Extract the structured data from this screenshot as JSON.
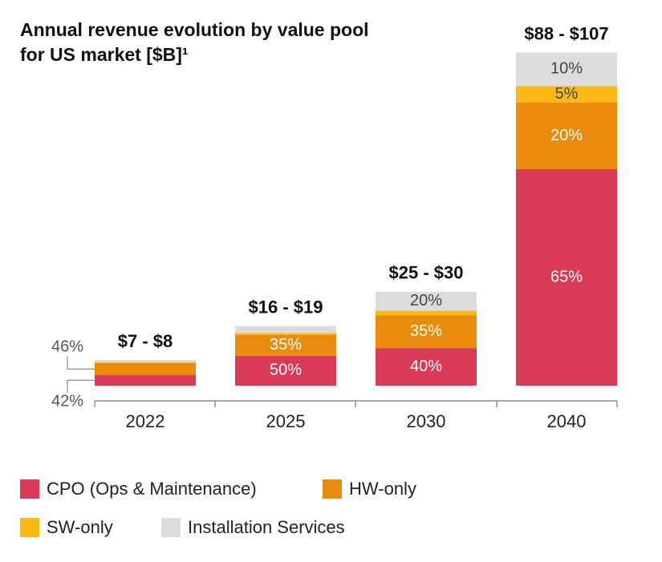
{
  "chart_data": {
    "type": "stacked-bar",
    "title": "Annual revenue evolution by value pool for US market [$B]¹",
    "categories": [
      "2022",
      "2025",
      "2030",
      "2040"
    ],
    "totals": [
      {
        "low": 7,
        "high": 8,
        "label": "$7 - $8"
      },
      {
        "low": 16,
        "high": 19,
        "label": "$16 - $19"
      },
      {
        "low": 25,
        "high": 30,
        "label": "$25 - $30"
      },
      {
        "low": 88,
        "high": 107,
        "label": "$88 - $107"
      }
    ],
    "series": [
      {
        "name": "CPO (Ops & Maintenance)",
        "color": "#d93a56",
        "values": [
          42,
          50,
          40,
          65
        ],
        "value_labels": [
          "42%",
          "50%",
          "40%",
          "65%"
        ]
      },
      {
        "name": "HW-only",
        "color": "#e98b0c",
        "values": [
          46,
          35,
          35,
          20
        ],
        "value_labels": [
          "46%",
          "35%",
          "35%",
          "20%"
        ]
      },
      {
        "name": "SW-only",
        "color": "#fdb913",
        "values": [
          4,
          3,
          5,
          5
        ],
        "value_labels": [
          null,
          null,
          null,
          "5%"
        ]
      },
      {
        "name": "Installation Services",
        "color": "#dcdcdc",
        "values": [
          8,
          12,
          20,
          10
        ],
        "value_labels": [
          null,
          null,
          "20%",
          "10%"
        ]
      }
    ]
  }
}
